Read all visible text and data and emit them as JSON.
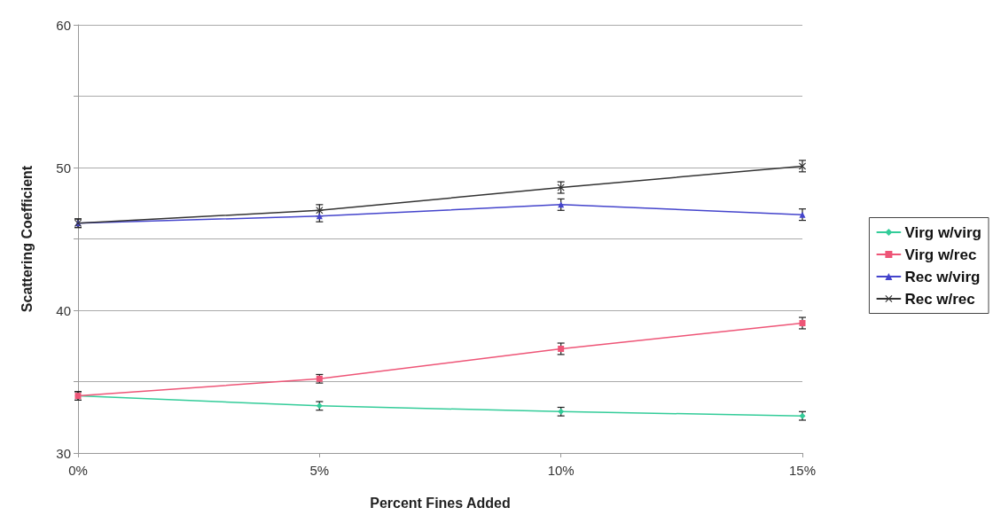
{
  "chart_data": {
    "type": "line",
    "xlabel": "Percent Fines Added",
    "ylabel": "Scattering Coefficient",
    "categories": [
      "0%",
      "5%",
      "10%",
      "15%"
    ],
    "ylim": [
      30,
      60
    ],
    "yticks": [
      30,
      {
        "value": 35,
        "label": null
      },
      40,
      {
        "value": 45,
        "label": null
      },
      50,
      {
        "value": 55,
        "label": null
      },
      60
    ],
    "grid": "y",
    "legend": "right",
    "line_style": "solid",
    "series": [
      {
        "name": "Virg w/virg",
        "color": "#33cc99",
        "marker": "diamond",
        "values": [
          34.0,
          33.3,
          32.9,
          32.6
        ],
        "errors": [
          0.3,
          0.3,
          0.3,
          0.3
        ]
      },
      {
        "name": "Virg w/rec",
        "color": "#ee5577",
        "marker": "square",
        "values": [
          34.0,
          35.2,
          37.3,
          39.1
        ],
        "errors": [
          0.3,
          0.3,
          0.4,
          0.4
        ]
      },
      {
        "name": "Rec w/virg",
        "color": "#4444cc",
        "marker": "triangle",
        "values": [
          46.1,
          46.6,
          47.4,
          46.7
        ],
        "errors": [
          0.3,
          0.4,
          0.4,
          0.4
        ]
      },
      {
        "name": "Rec w/rec",
        "color": "#333333",
        "marker": "cross",
        "values": [
          46.1,
          47.0,
          48.6,
          50.1
        ],
        "errors": [
          0.3,
          0.4,
          0.4,
          0.4
        ]
      }
    ]
  }
}
